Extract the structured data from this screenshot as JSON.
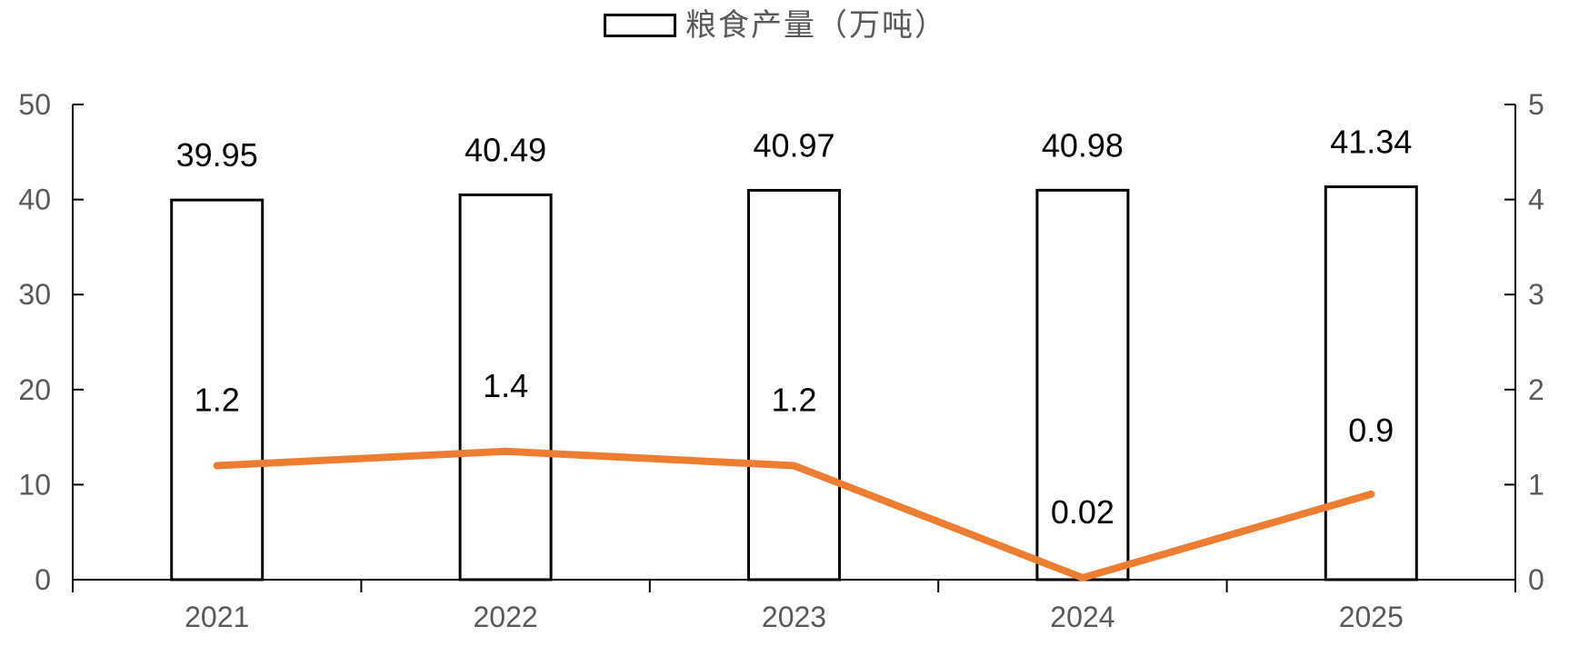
{
  "chart_data": {
    "type": "bar",
    "categories": [
      "2021",
      "2022",
      "2023",
      "2024",
      "2025"
    ],
    "series": [
      {
        "name": "粮食产量（万吨）",
        "type": "bar",
        "axis": "left",
        "values": [
          39.95,
          40.49,
          40.97,
          40.98,
          41.34
        ],
        "labels": [
          "39.95",
          "40.49",
          "40.97",
          "40.98",
          "41.34"
        ],
        "fill": "#ffffff",
        "stroke": "#000000"
      },
      {
        "type": "line",
        "axis": "right",
        "values": [
          1.2,
          1.35,
          1.2,
          0.02,
          0.9
        ],
        "labels": [
          "1.2",
          "1.4",
          "1.2",
          "0.02",
          "0.9"
        ],
        "color": "#ED7D31"
      }
    ],
    "ylim_left": [
      0,
      50
    ],
    "yticks_left": [
      "0",
      "10",
      "20",
      "30",
      "40",
      "50"
    ],
    "ylim_right": [
      0,
      5
    ],
    "yticks_right": [
      "0",
      "1",
      "2",
      "3",
      "4",
      "5"
    ],
    "legend_position": "top-center",
    "grid": false
  }
}
